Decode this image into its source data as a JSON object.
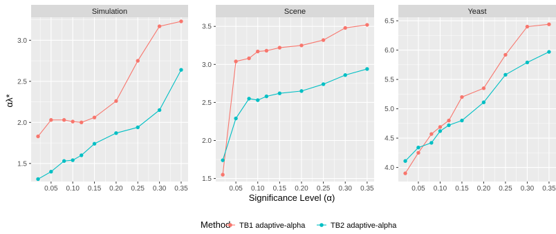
{
  "chart_data": {
    "type": "line",
    "xlabel": "Significance Level (α)",
    "ylabel": "αλ*",
    "legend": {
      "title": "Method",
      "position": "bottom",
      "items": [
        {
          "label": "TB1 adaptive-alpha",
          "color": "#F8766D"
        },
        {
          "label": "TB2 adaptive-alpha",
          "color": "#00BFC4"
        }
      ]
    },
    "x": [
      0.02,
      0.05,
      0.08,
      0.1,
      0.12,
      0.15,
      0.2,
      0.25,
      0.3,
      0.35
    ],
    "x_ticks": [
      0.05,
      0.1,
      0.15,
      0.2,
      0.25,
      0.3,
      0.35
    ],
    "x_tick_labels": [
      "0.05",
      "0.10",
      "0.15",
      "0.20",
      "0.25",
      "0.30",
      "0.35"
    ],
    "xlim": [
      0.004,
      0.366
    ],
    "colors": {
      "panel_bg": "#EBEBEB",
      "strip_bg": "#D9D9D9",
      "grid": "#FFFFFF"
    },
    "panels": [
      {
        "title": "Simulation",
        "ylim": [
          1.28,
          3.28
        ],
        "y_ticks": [
          1.5,
          2.0,
          2.5,
          3.0
        ],
        "y_tick_labels": [
          "1.5",
          "2.0",
          "2.5",
          "3.0"
        ],
        "series": [
          {
            "name": "TB1 adaptive-alpha",
            "color": "#F8766D",
            "values": [
              1.83,
              2.03,
              2.03,
              2.01,
              2.0,
              2.06,
              2.26,
              2.75,
              3.17,
              3.23
            ]
          },
          {
            "name": "TB2 adaptive-alpha",
            "color": "#00BFC4",
            "values": [
              1.31,
              1.4,
              1.53,
              1.54,
              1.6,
              1.74,
              1.87,
              1.94,
              2.15,
              2.64
            ]
          }
        ]
      },
      {
        "title": "Scene",
        "ylim": [
          1.46,
          3.62
        ],
        "y_ticks": [
          1.5,
          2.0,
          2.5,
          3.0,
          3.5
        ],
        "y_tick_labels": [
          "1.5",
          "2.0",
          "2.5",
          "3.0",
          "3.5"
        ],
        "series": [
          {
            "name": "TB1 adaptive-alpha",
            "color": "#F8766D",
            "values": [
              1.55,
              3.04,
              3.08,
              3.17,
              3.18,
              3.22,
              3.25,
              3.32,
              3.48,
              3.52
            ]
          },
          {
            "name": "TB2 adaptive-alpha",
            "color": "#00BFC4",
            "values": [
              1.74,
              2.29,
              2.55,
              2.53,
              2.58,
              2.62,
              2.65,
              2.74,
              2.86,
              2.94
            ]
          }
        ]
      },
      {
        "title": "Yeast",
        "ylim": [
          3.76,
          6.56
        ],
        "y_ticks": [
          4.0,
          4.5,
          5.0,
          5.5,
          6.0,
          6.5
        ],
        "y_tick_labels": [
          "4.0",
          "4.5",
          "5.0",
          "5.5",
          "6.0",
          "6.5"
        ],
        "series": [
          {
            "name": "TB1 adaptive-alpha",
            "color": "#F8766D",
            "values": [
              3.9,
              4.25,
              4.57,
              4.69,
              4.8,
              5.2,
              5.35,
              5.92,
              6.4,
              6.44
            ]
          },
          {
            "name": "TB2 adaptive-alpha",
            "color": "#00BFC4",
            "values": [
              4.11,
              4.34,
              4.42,
              4.62,
              4.72,
              4.8,
              5.11,
              5.58,
              5.79,
              5.97
            ]
          }
        ]
      }
    ]
  }
}
